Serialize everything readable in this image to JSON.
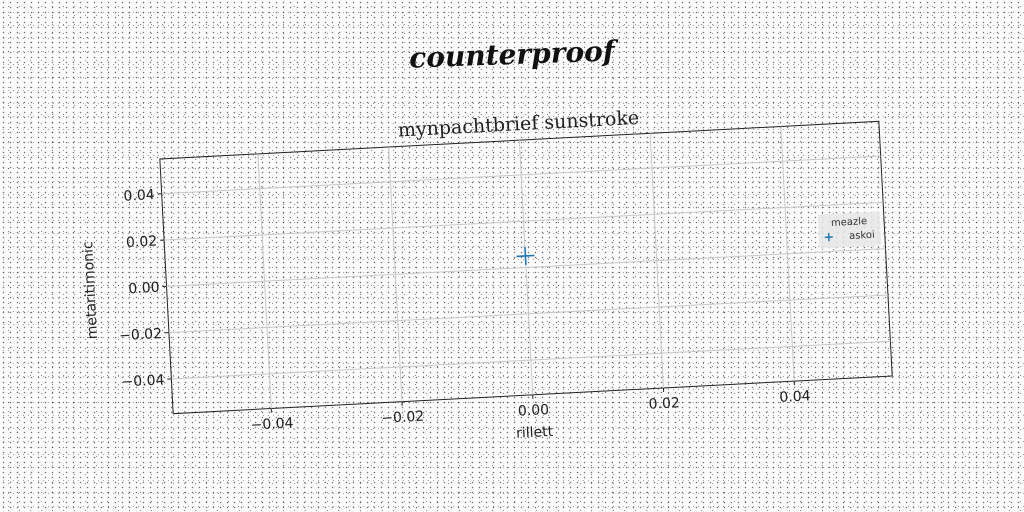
{
  "doc_title": "counterproof",
  "chart_data": {
    "type": "scatter",
    "title": "mynpachtbrief sunstroke",
    "xlabel": "rillett",
    "ylabel": "metaritimonic",
    "xlim": [
      -0.055,
      0.055
    ],
    "ylim": [
      -0.055,
      0.055
    ],
    "xticks": [
      -0.04,
      -0.02,
      0.0,
      0.02,
      0.04
    ],
    "yticks": [
      -0.04,
      -0.02,
      0.0,
      0.02,
      0.04
    ],
    "xtick_labels": [
      "−0.04",
      "−0.02",
      "0.00",
      "0.02",
      "0.04"
    ],
    "ytick_labels": [
      "−0.04",
      "−0.02",
      "0.00",
      "0.02",
      "0.04"
    ],
    "grid": true,
    "legend": {
      "title": "meazle",
      "placement": "right",
      "entries": [
        "askoi"
      ]
    },
    "series": [
      {
        "name": "askoi",
        "marker": "+",
        "color": "#1f77b4",
        "points": [
          {
            "x": 0.0,
            "y": 0.005
          }
        ]
      }
    ]
  }
}
